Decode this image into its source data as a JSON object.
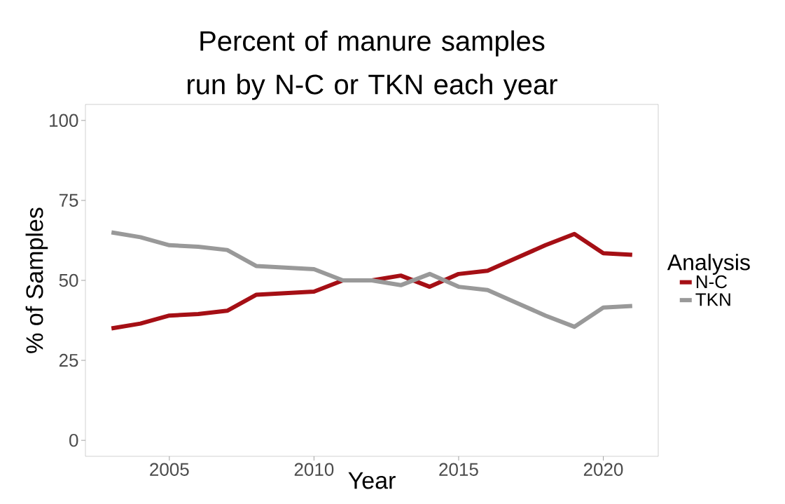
{
  "chart_data": {
    "type": "line",
    "title": "Percent of manure samples run by N-C or TKN each year",
    "xlabel": "Year",
    "ylabel": "% of Samples",
    "legend_title": "Analysis",
    "legend": "right",
    "grid": false,
    "line_style": "solid",
    "x": [
      2003,
      2004,
      2005,
      2006,
      2007,
      2008,
      2009,
      2010,
      2011,
      2012,
      2013,
      2014,
      2015,
      2016,
      2017,
      2018,
      2019,
      2020,
      2021
    ],
    "series": [
      {
        "name": "N-C",
        "color": "#a50f15",
        "values": [
          35,
          36.5,
          39,
          39.5,
          40.5,
          45.5,
          46,
          46.5,
          50,
          50,
          51.5,
          48,
          52,
          53,
          57,
          61,
          64.5,
          58.5,
          58
        ]
      },
      {
        "name": "TKN",
        "color": "#999999",
        "values": [
          65,
          63.5,
          61,
          60.5,
          59.5,
          54.5,
          54,
          53.5,
          50,
          50,
          48.5,
          52,
          48,
          47,
          43,
          39,
          35.5,
          41.5,
          42
        ]
      }
    ],
    "xlim": [
      2002.1,
      2021.9
    ],
    "ylim": [
      -5,
      105
    ],
    "xticks": [
      2005,
      2010,
      2015,
      2020
    ],
    "yticks": [
      0,
      25,
      50,
      75,
      100
    ]
  }
}
